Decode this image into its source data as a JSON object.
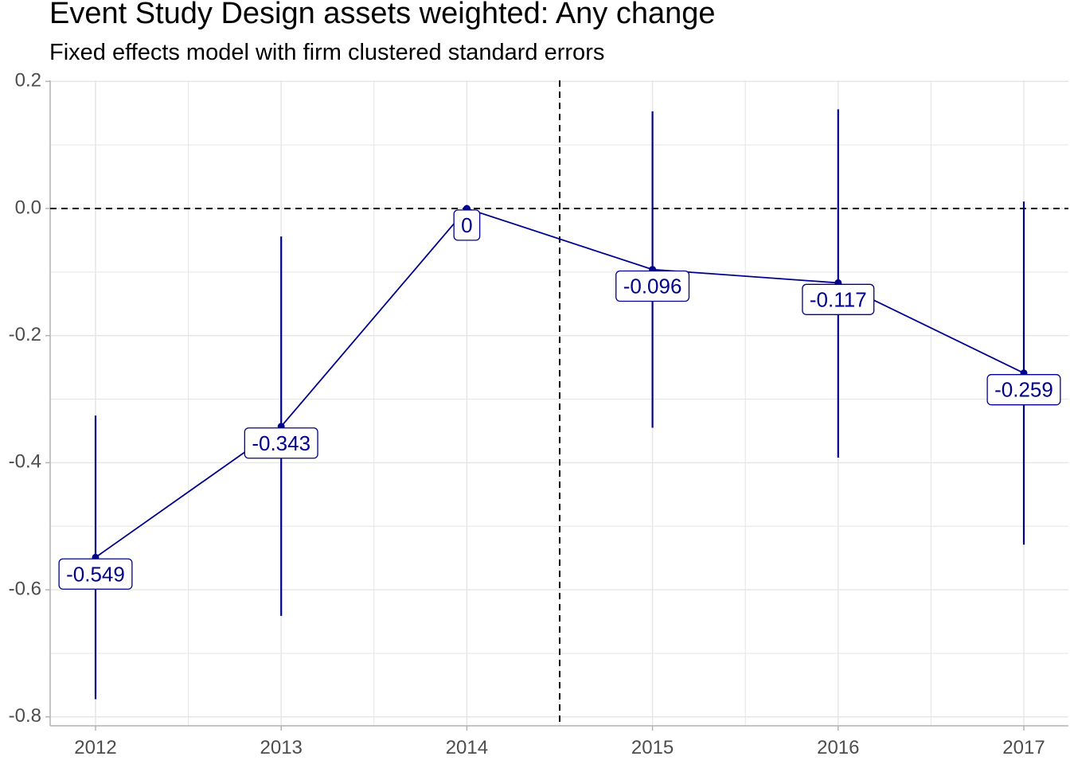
{
  "chart_data": {
    "type": "line",
    "title": "Event Study Design assets weighted: Any change",
    "subtitle": "Fixed effects model with firm clustered standard errors",
    "xlabel": "",
    "ylabel": "",
    "x": [
      "2012",
      "2013",
      "2014",
      "2015",
      "2016",
      "2017"
    ],
    "series": [
      {
        "values": [
          -0.549,
          -0.343,
          0,
          -0.096,
          -0.117,
          -0.259
        ],
        "ci_low": [
          -0.772,
          -0.641,
          0,
          -0.345,
          -0.392,
          -0.529
        ],
        "ci_high": [
          -0.326,
          -0.044,
          0,
          0.153,
          0.156,
          0.011
        ],
        "labels": [
          "-0.549",
          "-0.343",
          "0",
          "-0.096",
          "-0.117",
          "-0.259"
        ]
      }
    ],
    "ylim": [
      -0.815,
      0.2
    ],
    "y_ticks": [
      0.2,
      0.0,
      -0.2,
      -0.4,
      -0.6,
      -0.8
    ],
    "y_tick_labels": [
      "0.2",
      "0.0",
      "-0.2",
      "-0.4",
      "-0.6",
      "-0.8"
    ],
    "reference_lines": {
      "horizontal_y": 0,
      "vertical_between": [
        "2014",
        "2015"
      ]
    },
    "grid": true,
    "series_color": "#00008B",
    "reference_line_color": "#000000",
    "grid_color": "#e5e5e5",
    "tick_label_color": "#4d4d4d"
  }
}
